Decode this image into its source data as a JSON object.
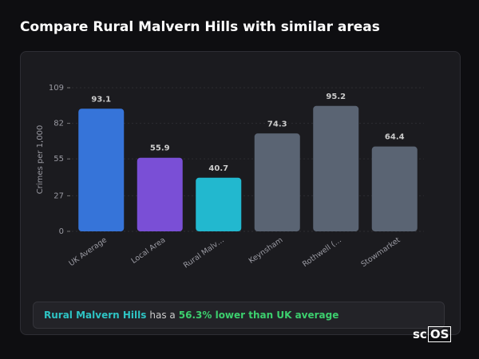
{
  "chart_data": {
    "type": "bar",
    "title": "Compare Rural Malvern Hills with similar areas",
    "y_label": "Crimes per 1,000",
    "categories": [
      "UK Average",
      "Local Area",
      "Rural Malv…",
      "Keynsham",
      "Rothwell (…",
      "Stowmarket"
    ],
    "values": [
      93.1,
      55.9,
      40.7,
      74.3,
      95.2,
      64.4
    ],
    "colors": [
      "#3674d9",
      "#7a4fd6",
      "#22b8cf",
      "#5a6473",
      "#5a6473",
      "#5a6473"
    ],
    "ylim": [
      0,
      109
    ],
    "yticks": [
      0,
      27,
      55,
      82,
      109
    ],
    "grid": true
  },
  "note": {
    "area": "Rural Malvern Hills",
    "text": "has a",
    "highlight": "56.3% lower than UK average"
  },
  "logo": {
    "left": "sc",
    "boxed": "OS"
  }
}
